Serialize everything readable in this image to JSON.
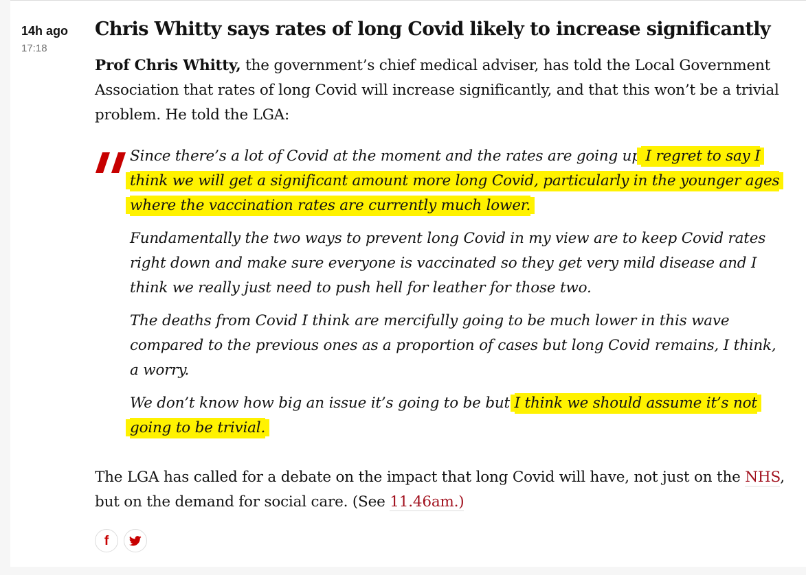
{
  "post": {
    "time_ago": "14h ago",
    "time": "17:18",
    "headline": "Chris Whitty says rates of long Covid likely to increase significantly",
    "intro": {
      "bold": "Prof Chris Whitty,",
      "text": " the government’s chief medical adviser, has told the Local Government Association that rates of long Covid will increase significantly, and that this won’t be a trivial problem. He told the LGA:"
    },
    "quote": {
      "p1_plain": "Since there’s a lot of Covid at the moment and the rates are going up",
      "p1_highlight": " I regret to say I think we will get a significant amount more long Covid, particularly in the younger ages where the vaccination rates are currently much lower.",
      "p2": "Fundamentally the two ways to prevent long Covid in my view are to keep Covid rates right down and make sure everyone is vaccinated so they get very mild disease and I think we really just need to push hell for leather for those two.",
      "p3": "The deaths from Covid I think are mercifully going to be much lower in this wave compared to the previous ones as a proportion of cases but long Covid remains, I think, a worry.",
      "p4_plain": "We don’t know how big an issue it’s going to be but ",
      "p4_highlight": "I think we should assume it’s not going to be trivial."
    },
    "outro": {
      "text1": "The LGA has called for a debate on the impact that long Covid will have, not just on the ",
      "link1": "NHS",
      "text2": ", but on the demand for social care. (See ",
      "link2": "11.46am.)"
    }
  },
  "share": {
    "facebook_icon": "f",
    "twitter_icon": "twitter-bird"
  },
  "colors": {
    "accent": "#c70000",
    "link": "#a1101d",
    "highlight": "#fff200"
  }
}
